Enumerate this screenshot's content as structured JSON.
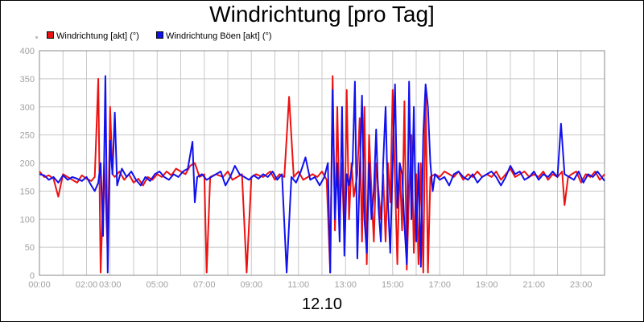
{
  "chart_data": {
    "type": "line",
    "title": "Windrichtung [pro Tag]",
    "xlabel": "12.10",
    "ylabel": "",
    "ylim": [
      0,
      400
    ],
    "yticks": [
      0,
      50,
      100,
      150,
      200,
      250,
      300,
      350,
      400
    ],
    "xlim": [
      0,
      24
    ],
    "xticks": [
      "00:00",
      "02:00",
      "03:00",
      "05:00",
      "07:00",
      "09:00",
      "11:00",
      "13:00",
      "15:00",
      "17:00",
      "19:00",
      "21:00",
      "23:00"
    ],
    "xtick_hours": [
      0,
      2,
      3,
      5,
      7,
      9,
      11,
      13,
      15,
      17,
      19,
      21,
      23
    ],
    "grid": true,
    "legend_position": "top-left",
    "series": [
      {
        "name": "Windrichtung [akt] (°)",
        "color": "#ee1111",
        "points": [
          [
            0.0,
            185
          ],
          [
            0.2,
            175
          ],
          [
            0.4,
            178
          ],
          [
            0.6,
            172
          ],
          [
            0.8,
            140
          ],
          [
            1.0,
            180
          ],
          [
            1.2,
            175
          ],
          [
            1.4,
            170
          ],
          [
            1.6,
            165
          ],
          [
            1.8,
            178
          ],
          [
            2.0,
            172
          ],
          [
            2.2,
            168
          ],
          [
            2.35,
            175
          ],
          [
            2.5,
            350
          ],
          [
            2.6,
            5
          ],
          [
            2.75,
            200
          ],
          [
            2.9,
            40
          ],
          [
            3.0,
            300
          ],
          [
            3.1,
            180
          ],
          [
            3.2,
            175
          ],
          [
            3.4,
            185
          ],
          [
            3.6,
            170
          ],
          [
            3.8,
            180
          ],
          [
            4.0,
            165
          ],
          [
            4.2,
            172
          ],
          [
            4.4,
            160
          ],
          [
            4.6,
            175
          ],
          [
            4.8,
            170
          ],
          [
            5.0,
            180
          ],
          [
            5.2,
            175
          ],
          [
            5.4,
            185
          ],
          [
            5.6,
            178
          ],
          [
            5.8,
            190
          ],
          [
            6.0,
            185
          ],
          [
            6.2,
            180
          ],
          [
            6.4,
            195
          ],
          [
            6.6,
            200
          ],
          [
            6.8,
            175
          ],
          [
            7.0,
            180
          ],
          [
            7.1,
            5
          ],
          [
            7.25,
            175
          ],
          [
            7.5,
            180
          ],
          [
            7.8,
            175
          ],
          [
            8.0,
            185
          ],
          [
            8.2,
            170
          ],
          [
            8.4,
            175
          ],
          [
            8.6,
            180
          ],
          [
            8.8,
            5
          ],
          [
            9.0,
            175
          ],
          [
            9.2,
            180
          ],
          [
            9.5,
            175
          ],
          [
            9.8,
            185
          ],
          [
            10.0,
            170
          ],
          [
            10.2,
            180
          ],
          [
            10.4,
            175
          ],
          [
            10.6,
            318
          ],
          [
            10.8,
            175
          ],
          [
            11.0,
            185
          ],
          [
            11.2,
            170
          ],
          [
            11.4,
            175
          ],
          [
            11.6,
            180
          ],
          [
            11.8,
            175
          ],
          [
            12.0,
            185
          ],
          [
            12.2,
            170
          ],
          [
            12.35,
            5
          ],
          [
            12.45,
            355
          ],
          [
            12.55,
            80
          ],
          [
            12.65,
            300
          ],
          [
            12.75,
            95
          ],
          [
            12.85,
            200
          ],
          [
            12.95,
            60
          ],
          [
            13.05,
            330
          ],
          [
            13.15,
            100
          ],
          [
            13.25,
            200
          ],
          [
            13.35,
            140
          ],
          [
            13.5,
            180
          ],
          [
            13.6,
            280
          ],
          [
            13.7,
            60
          ],
          [
            13.8,
            300
          ],
          [
            13.9,
            20
          ],
          [
            14.0,
            250
          ],
          [
            14.1,
            150
          ],
          [
            14.2,
            60
          ],
          [
            14.3,
            200
          ],
          [
            14.4,
            150
          ],
          [
            14.5,
            100
          ],
          [
            14.6,
            180
          ],
          [
            14.7,
            60
          ],
          [
            14.8,
            200
          ],
          [
            14.9,
            130
          ],
          [
            15.0,
            330
          ],
          [
            15.1,
            170
          ],
          [
            15.2,
            20
          ],
          [
            15.3,
            200
          ],
          [
            15.4,
            80
          ],
          [
            15.5,
            310
          ],
          [
            15.6,
            10
          ],
          [
            15.7,
            150
          ],
          [
            15.8,
            250
          ],
          [
            15.9,
            40
          ],
          [
            16.0,
            180
          ],
          [
            16.1,
            20
          ],
          [
            16.2,
            200
          ],
          [
            16.3,
            5
          ],
          [
            16.4,
            330
          ],
          [
            16.5,
            5
          ],
          [
            16.6,
            175
          ],
          [
            16.8,
            180
          ],
          [
            17.0,
            175
          ],
          [
            17.2,
            185
          ],
          [
            17.4,
            180
          ],
          [
            17.6,
            175
          ],
          [
            17.8,
            185
          ],
          [
            18.0,
            170
          ],
          [
            18.2,
            180
          ],
          [
            18.4,
            175
          ],
          [
            18.6,
            185
          ],
          [
            18.8,
            175
          ],
          [
            19.0,
            180
          ],
          [
            19.2,
            175
          ],
          [
            19.4,
            185
          ],
          [
            19.6,
            170
          ],
          [
            19.8,
            180
          ],
          [
            20.0,
            190
          ],
          [
            20.2,
            175
          ],
          [
            20.4,
            180
          ],
          [
            20.6,
            185
          ],
          [
            20.8,
            175
          ],
          [
            21.0,
            180
          ],
          [
            21.2,
            175
          ],
          [
            21.4,
            185
          ],
          [
            21.6,
            170
          ],
          [
            21.8,
            180
          ],
          [
            22.0,
            175
          ],
          [
            22.2,
            185
          ],
          [
            22.3,
            125
          ],
          [
            22.45,
            175
          ],
          [
            22.6,
            180
          ],
          [
            22.8,
            185
          ],
          [
            23.0,
            165
          ],
          [
            23.2,
            180
          ],
          [
            23.4,
            175
          ],
          [
            23.6,
            185
          ],
          [
            23.8,
            170
          ],
          [
            24.0,
            180
          ]
        ]
      },
      {
        "name": "Windrichtung Böen [akt] (°)",
        "color": "#1111ee",
        "points": [
          [
            0.0,
            180
          ],
          [
            0.2,
            178
          ],
          [
            0.4,
            170
          ],
          [
            0.6,
            175
          ],
          [
            0.8,
            165
          ],
          [
            1.0,
            178
          ],
          [
            1.2,
            170
          ],
          [
            1.4,
            175
          ],
          [
            1.6,
            172
          ],
          [
            1.8,
            168
          ],
          [
            2.0,
            175
          ],
          [
            2.2,
            160
          ],
          [
            2.35,
            150
          ],
          [
            2.5,
            165
          ],
          [
            2.6,
            200
          ],
          [
            2.7,
            70
          ],
          [
            2.8,
            355
          ],
          [
            2.9,
            5
          ],
          [
            3.0,
            240
          ],
          [
            3.1,
            180
          ],
          [
            3.2,
            290
          ],
          [
            3.3,
            160
          ],
          [
            3.5,
            190
          ],
          [
            3.7,
            175
          ],
          [
            3.9,
            185
          ],
          [
            4.1,
            170
          ],
          [
            4.3,
            160
          ],
          [
            4.5,
            175
          ],
          [
            4.7,
            168
          ],
          [
            4.9,
            180
          ],
          [
            5.1,
            185
          ],
          [
            5.3,
            175
          ],
          [
            5.5,
            170
          ],
          [
            5.7,
            180
          ],
          [
            5.9,
            175
          ],
          [
            6.1,
            185
          ],
          [
            6.3,
            190
          ],
          [
            6.5,
            238
          ],
          [
            6.6,
            130
          ],
          [
            6.7,
            175
          ],
          [
            6.9,
            180
          ],
          [
            7.1,
            170
          ],
          [
            7.3,
            175
          ],
          [
            7.5,
            180
          ],
          [
            7.7,
            185
          ],
          [
            7.9,
            160
          ],
          [
            8.1,
            175
          ],
          [
            8.3,
            195
          ],
          [
            8.5,
            180
          ],
          [
            8.7,
            175
          ],
          [
            8.9,
            170
          ],
          [
            9.1,
            178
          ],
          [
            9.3,
            172
          ],
          [
            9.5,
            180
          ],
          [
            9.7,
            175
          ],
          [
            9.9,
            185
          ],
          [
            10.1,
            170
          ],
          [
            10.3,
            180
          ],
          [
            10.5,
            5
          ],
          [
            10.7,
            175
          ],
          [
            10.9,
            165
          ],
          [
            11.1,
            185
          ],
          [
            11.3,
            210
          ],
          [
            11.5,
            170
          ],
          [
            11.7,
            175
          ],
          [
            11.9,
            160
          ],
          [
            12.1,
            175
          ],
          [
            12.25,
            200
          ],
          [
            12.35,
            5
          ],
          [
            12.45,
            330
          ],
          [
            12.55,
            100
          ],
          [
            12.65,
            200
          ],
          [
            12.75,
            60
          ],
          [
            12.85,
            300
          ],
          [
            12.95,
            35
          ],
          [
            13.05,
            180
          ],
          [
            13.15,
            160
          ],
          [
            13.3,
            200
          ],
          [
            13.4,
            345
          ],
          [
            13.5,
            30
          ],
          [
            13.6,
            180
          ],
          [
            13.7,
            320
          ],
          [
            13.8,
            100
          ],
          [
            13.9,
            40
          ],
          [
            14.0,
            200
          ],
          [
            14.1,
            100
          ],
          [
            14.2,
            150
          ],
          [
            14.3,
            260
          ],
          [
            14.4,
            120
          ],
          [
            14.5,
            60
          ],
          [
            14.6,
            200
          ],
          [
            14.7,
            300
          ],
          [
            14.8,
            130
          ],
          [
            14.9,
            40
          ],
          [
            15.0,
            200
          ],
          [
            15.1,
            340
          ],
          [
            15.2,
            120
          ],
          [
            15.3,
            200
          ],
          [
            15.4,
            180
          ],
          [
            15.5,
            90
          ],
          [
            15.6,
            20
          ],
          [
            15.7,
            345
          ],
          [
            15.8,
            100
          ],
          [
            15.9,
            300
          ],
          [
            16.0,
            60
          ],
          [
            16.1,
            200
          ],
          [
            16.2,
            15
          ],
          [
            16.3,
            250
          ],
          [
            16.4,
            340
          ],
          [
            16.5,
            300
          ],
          [
            16.6,
            200
          ],
          [
            16.7,
            150
          ],
          [
            16.8,
            180
          ],
          [
            17.0,
            170
          ],
          [
            17.2,
            175
          ],
          [
            17.4,
            160
          ],
          [
            17.6,
            180
          ],
          [
            17.8,
            185
          ],
          [
            18.0,
            175
          ],
          [
            18.2,
            170
          ],
          [
            18.4,
            180
          ],
          [
            18.6,
            165
          ],
          [
            18.8,
            175
          ],
          [
            19.0,
            180
          ],
          [
            19.2,
            185
          ],
          [
            19.4,
            175
          ],
          [
            19.6,
            160
          ],
          [
            19.8,
            175
          ],
          [
            20.0,
            195
          ],
          [
            20.2,
            180
          ],
          [
            20.4,
            185
          ],
          [
            20.6,
            170
          ],
          [
            20.8,
            175
          ],
          [
            21.0,
            185
          ],
          [
            21.2,
            170
          ],
          [
            21.4,
            180
          ],
          [
            21.6,
            175
          ],
          [
            21.8,
            185
          ],
          [
            22.0,
            175
          ],
          [
            22.15,
            270
          ],
          [
            22.3,
            180
          ],
          [
            22.5,
            175
          ],
          [
            22.7,
            170
          ],
          [
            22.9,
            185
          ],
          [
            23.1,
            165
          ],
          [
            23.3,
            180
          ],
          [
            23.5,
            175
          ],
          [
            23.7,
            185
          ],
          [
            24.0,
            168
          ]
        ]
      }
    ]
  }
}
